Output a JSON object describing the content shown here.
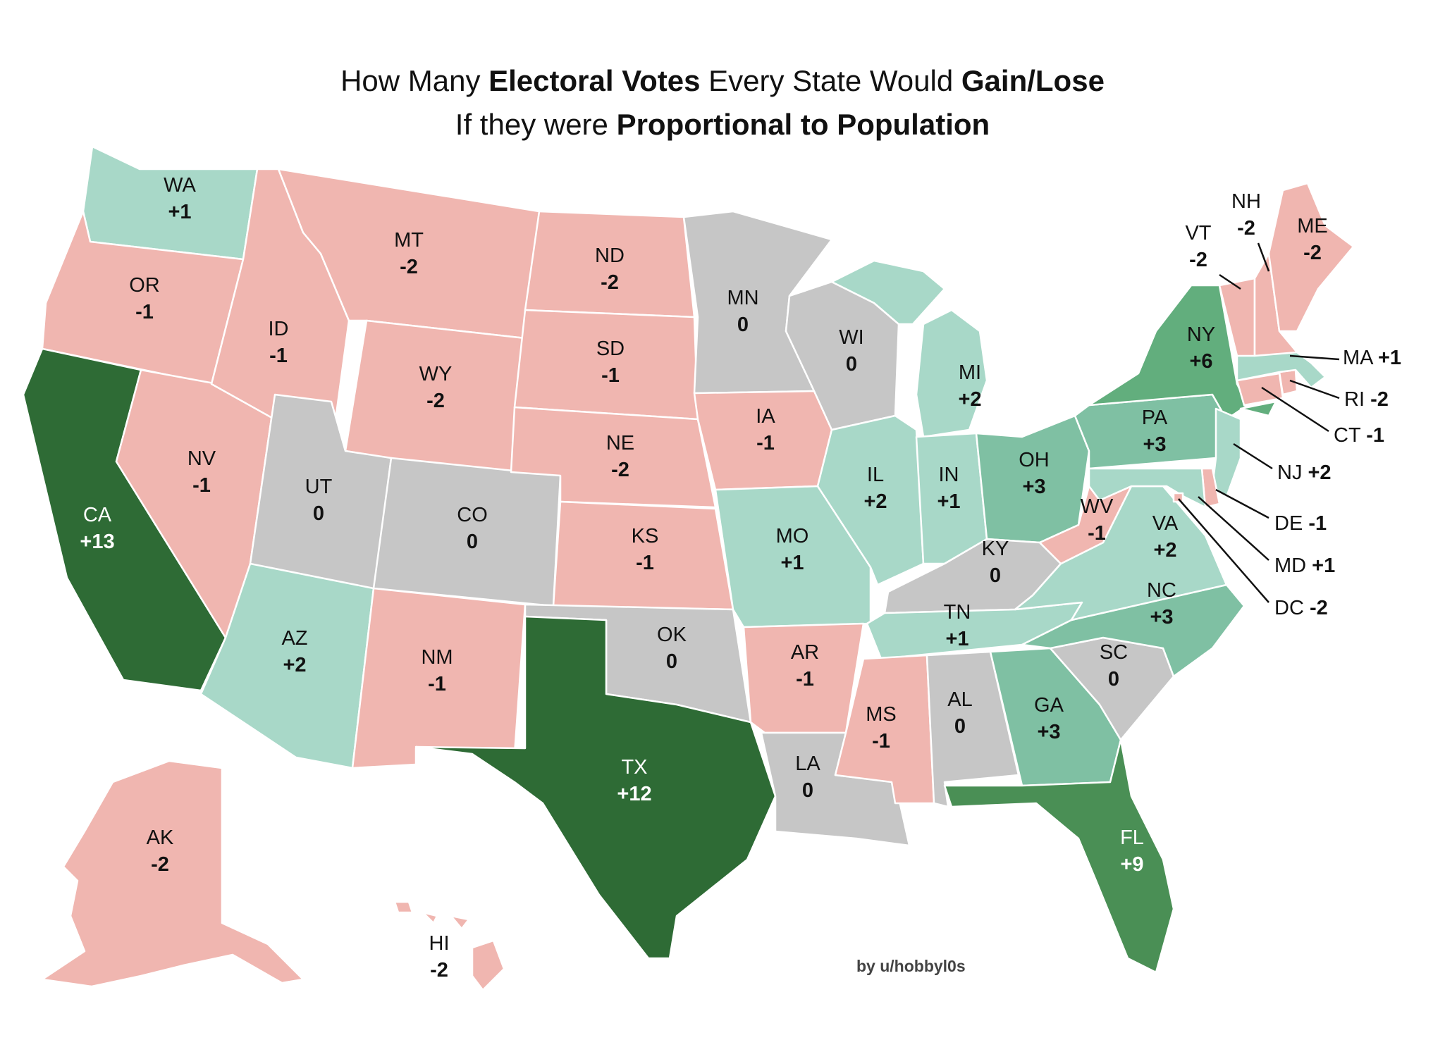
{
  "title": {
    "line1_a": "How Many ",
    "line1_b": "Electoral Votes",
    "line1_c": " Every State Would ",
    "line1_d": "Gain/Lose",
    "line2_a": "If they were ",
    "line2_b": "Proportional to Population"
  },
  "credit": "by u/hobbyl0s",
  "colors": {
    "neg": "#f0b6b0",
    "zero": "#c6c6c6",
    "plus_small": "#a8d8c8",
    "plus_mid": "#7fc0a3",
    "plus_high": "#62ae7d",
    "plus_very_high": "#4a8f55",
    "plus_max": "#2e6b35"
  },
  "states": {
    "WA": {
      "abbr": "WA",
      "change": "+1"
    },
    "OR": {
      "abbr": "OR",
      "change": "-1"
    },
    "CA": {
      "abbr": "CA",
      "change": "+13"
    },
    "NV": {
      "abbr": "NV",
      "change": "-1"
    },
    "ID": {
      "abbr": "ID",
      "change": "-1"
    },
    "MT": {
      "abbr": "MT",
      "change": "-2"
    },
    "WY": {
      "abbr": "WY",
      "change": "-2"
    },
    "UT": {
      "abbr": "UT",
      "change": "0"
    },
    "AZ": {
      "abbr": "AZ",
      "change": "+2"
    },
    "CO": {
      "abbr": "CO",
      "change": "0"
    },
    "NM": {
      "abbr": "NM",
      "change": "-1"
    },
    "ND": {
      "abbr": "ND",
      "change": "-2"
    },
    "SD": {
      "abbr": "SD",
      "change": "-1"
    },
    "NE": {
      "abbr": "NE",
      "change": "-2"
    },
    "KS": {
      "abbr": "KS",
      "change": "-1"
    },
    "OK": {
      "abbr": "OK",
      "change": "0"
    },
    "TX": {
      "abbr": "TX",
      "change": "+12"
    },
    "MN": {
      "abbr": "MN",
      "change": "0"
    },
    "IA": {
      "abbr": "IA",
      "change": "-1"
    },
    "MO": {
      "abbr": "MO",
      "change": "+1"
    },
    "AR": {
      "abbr": "AR",
      "change": "-1"
    },
    "LA": {
      "abbr": "LA",
      "change": "0"
    },
    "WI": {
      "abbr": "WI",
      "change": "0"
    },
    "IL": {
      "abbr": "IL",
      "change": "+2"
    },
    "MI": {
      "abbr": "MI",
      "change": "+2"
    },
    "IN": {
      "abbr": "IN",
      "change": "+1"
    },
    "OH": {
      "abbr": "OH",
      "change": "+3"
    },
    "KY": {
      "abbr": "KY",
      "change": "0"
    },
    "TN": {
      "abbr": "TN",
      "change": "+1"
    },
    "MS": {
      "abbr": "MS",
      "change": "-1"
    },
    "AL": {
      "abbr": "AL",
      "change": "0"
    },
    "GA": {
      "abbr": "GA",
      "change": "+3"
    },
    "FL": {
      "abbr": "FL",
      "change": "+9"
    },
    "SC": {
      "abbr": "SC",
      "change": "0"
    },
    "NC": {
      "abbr": "NC",
      "change": "+3"
    },
    "VA": {
      "abbr": "VA",
      "change": "+2"
    },
    "WV": {
      "abbr": "WV",
      "change": "-1"
    },
    "PA": {
      "abbr": "PA",
      "change": "+3"
    },
    "NY": {
      "abbr": "NY",
      "change": "+6"
    },
    "VT": {
      "abbr": "VT",
      "change": "-2"
    },
    "NH": {
      "abbr": "NH",
      "change": "-2"
    },
    "ME": {
      "abbr": "ME",
      "change": "-2"
    },
    "MA": {
      "abbr": "MA",
      "change": "+1"
    },
    "RI": {
      "abbr": "RI",
      "change": "-2"
    },
    "CT": {
      "abbr": "CT",
      "change": "-1"
    },
    "NJ": {
      "abbr": "NJ",
      "change": "+2"
    },
    "DE": {
      "abbr": "DE",
      "change": "-1"
    },
    "MD": {
      "abbr": "MD",
      "change": "+1"
    },
    "DC": {
      "abbr": "DC",
      "change": "-2"
    },
    "AK": {
      "abbr": "AK",
      "change": "-2"
    },
    "HI": {
      "abbr": "HI",
      "change": "-2"
    }
  }
}
